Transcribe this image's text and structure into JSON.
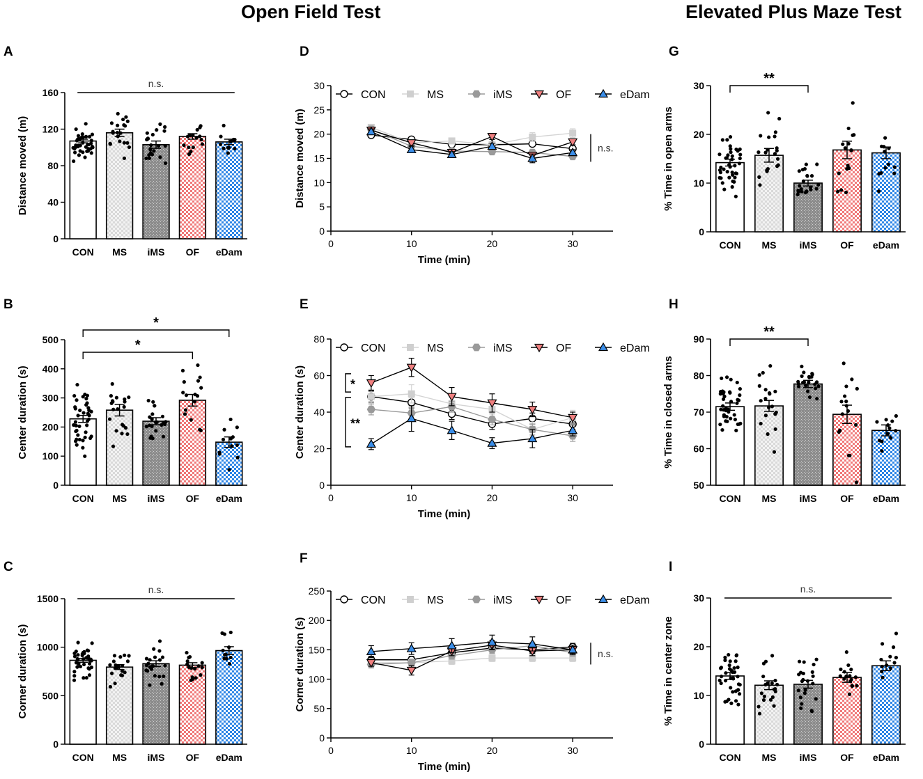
{
  "page": {
    "section_titles": [
      "Open Field Test",
      "Elevated Plus Maze Test"
    ]
  },
  "group_colors": {
    "CON": "#ffffff",
    "MS": "#d9d9d9",
    "iMS": "#8c8c8c",
    "OF": "#f07a7a",
    "eDam": "#2f86e6"
  },
  "chart_data": [
    {
      "id": "A",
      "type": "bar",
      "panel_letter": "A",
      "ylabel": "Distance moved (m)",
      "categories": [
        "CON",
        "MS",
        "iMS",
        "OF",
        "eDam"
      ],
      "values": [
        107,
        116,
        103,
        112,
        106
      ],
      "sem": [
        2,
        4,
        4,
        3,
        3
      ],
      "ylim": [
        0,
        160
      ],
      "yticks": [
        0,
        40,
        80,
        120,
        160
      ],
      "significance": [
        {
          "from": 0,
          "to": 4,
          "label": "n.s."
        }
      ]
    },
    {
      "id": "B",
      "type": "bar",
      "panel_letter": "B",
      "ylabel": "Center duration (s)",
      "categories": [
        "CON",
        "MS",
        "iMS",
        "OF",
        "eDam"
      ],
      "values": [
        228,
        258,
        220,
        292,
        148
      ],
      "sem": [
        12,
        20,
        12,
        20,
        18
      ],
      "ylim": [
        0,
        500
      ],
      "yticks": [
        0,
        100,
        200,
        300,
        400,
        500
      ],
      "significance": [
        {
          "from": 0,
          "to": 3,
          "label": "*"
        },
        {
          "from": 0,
          "to": 4,
          "label": "*"
        }
      ]
    },
    {
      "id": "C",
      "type": "bar",
      "panel_letter": "C",
      "ylabel": "Corner duration (s)",
      "categories": [
        "CON",
        "MS",
        "iMS",
        "OF",
        "eDam"
      ],
      "values": [
        865,
        795,
        830,
        815,
        965
      ],
      "sem": [
        20,
        25,
        30,
        25,
        40
      ],
      "ylim": [
        0,
        1500
      ],
      "yticks": [
        0,
        500,
        1000,
        1500
      ],
      "significance": [
        {
          "from": 0,
          "to": 4,
          "label": "n.s."
        }
      ]
    },
    {
      "id": "D",
      "type": "line",
      "panel_letter": "D",
      "xlabel": "Time (min)",
      "ylabel": "Distance moved (m)",
      "x": [
        5,
        10,
        15,
        20,
        25,
        30
      ],
      "xlim": [
        0,
        35
      ],
      "xticks": [
        0,
        10,
        20,
        30
      ],
      "ylim": [
        0,
        30
      ],
      "yticks": [
        0,
        5,
        10,
        15,
        20,
        25,
        30
      ],
      "legend": [
        "CON",
        "MS",
        "iMS",
        "OF",
        "eDam"
      ],
      "series": [
        {
          "name": "CON",
          "values": [
            19.8,
            18.9,
            17.9,
            17.8,
            18.0,
            17.0
          ],
          "sem": [
            0.3,
            0.3,
            0.3,
            0.3,
            0.3,
            0.3
          ]
        },
        {
          "name": "MS",
          "values": [
            21.4,
            18.2,
            18.6,
            17.8,
            19.4,
            20.2
          ],
          "sem": [
            0.6,
            0.6,
            0.6,
            0.6,
            0.9,
            0.9
          ]
        },
        {
          "name": "iMS",
          "values": [
            21.0,
            17.5,
            16.5,
            16.4,
            16.2,
            15.4
          ],
          "sem": [
            0.6,
            0.6,
            0.6,
            0.6,
            0.6,
            0.6
          ]
        },
        {
          "name": "OF",
          "values": [
            20.8,
            18.2,
            16.2,
            19.5,
            15.6,
            18.4
          ],
          "sem": [
            0.6,
            0.6,
            0.6,
            0.6,
            0.6,
            0.6
          ]
        },
        {
          "name": "eDam",
          "values": [
            20.5,
            16.8,
            15.8,
            17.5,
            15.0,
            16.2
          ],
          "sem": [
            0.6,
            0.6,
            0.6,
            0.6,
            0.9,
            0.6
          ]
        }
      ],
      "annotations": [
        {
          "label": "n.s.",
          "ystart": 20,
          "yend": 14.3
        }
      ]
    },
    {
      "id": "E",
      "type": "line",
      "panel_letter": "E",
      "xlabel": "Time (min)",
      "ylabel": "Center duration (s)",
      "x": [
        5,
        10,
        15,
        20,
        25,
        30
      ],
      "xlim": [
        0,
        35
      ],
      "xticks": [
        0,
        10,
        20,
        30
      ],
      "ylim": [
        0,
        80
      ],
      "yticks": [
        0,
        20,
        40,
        60,
        80
      ],
      "legend": [
        "CON",
        "MS",
        "iMS",
        "OF",
        "eDam"
      ],
      "series": [
        {
          "name": "CON",
          "values": [
            48.5,
            45.3,
            39.0,
            33.5,
            36.5,
            33.5
          ],
          "sem": [
            3,
            3,
            3,
            3,
            3,
            3
          ]
        },
        {
          "name": "MS",
          "values": [
            48.5,
            50.0,
            44.5,
            41.5,
            30.5,
            37.0
          ],
          "sem": [
            4,
            5,
            4,
            4,
            4,
            4
          ]
        },
        {
          "name": "iMS",
          "values": [
            41.5,
            39.5,
            43.0,
            36.0,
            30.5,
            27.0
          ],
          "sem": [
            3,
            3,
            3,
            3,
            3,
            3
          ]
        },
        {
          "name": "OF",
          "values": [
            56.0,
            64.5,
            48.5,
            45.0,
            41.5,
            37.0
          ],
          "sem": [
            4,
            5,
            5,
            5,
            4,
            3
          ]
        },
        {
          "name": "eDam",
          "values": [
            22.5,
            36.5,
            30.0,
            23.0,
            25.5,
            30.0
          ],
          "sem": [
            3,
            7,
            5,
            3,
            5,
            3
          ]
        }
      ],
      "annotations": [
        {
          "label": "*",
          "ystart": 61,
          "yend": 51
        },
        {
          "label": "**",
          "ystart": 48,
          "yend": 21
        }
      ]
    },
    {
      "id": "F",
      "type": "line",
      "panel_letter": "F",
      "xlabel": "Time (min)",
      "ylabel": "Corner duration (s)",
      "x": [
        5,
        10,
        15,
        20,
        25,
        30
      ],
      "xlim": [
        0,
        35
      ],
      "xticks": [
        0,
        10,
        20,
        30
      ],
      "ylim": [
        0,
        250
      ],
      "yticks": [
        0,
        50,
        100,
        150,
        200,
        250
      ],
      "legend": [
        "CON",
        "MS",
        "iMS",
        "OF",
        "eDam"
      ],
      "series": [
        {
          "name": "CON",
          "values": [
            133,
            133,
            145,
            153,
            150,
            155
          ],
          "sem": [
            6,
            6,
            6,
            6,
            6,
            6
          ]
        },
        {
          "name": "MS",
          "values": [
            128,
            128,
            131,
            136,
            136,
            136
          ],
          "sem": [
            6,
            6,
            6,
            6,
            6,
            6
          ]
        },
        {
          "name": "iMS",
          "values": [
            125,
            128,
            140,
            150,
            157,
            145
          ],
          "sem": [
            6,
            6,
            6,
            6,
            6,
            6
          ]
        },
        {
          "name": "OF",
          "values": [
            128,
            115,
            148,
            158,
            148,
            150
          ],
          "sem": [
            6,
            8,
            8,
            8,
            8,
            6
          ]
        },
        {
          "name": "eDam",
          "values": [
            147,
            152,
            157,
            163,
            160,
            150
          ],
          "sem": [
            10,
            10,
            12,
            12,
            12,
            8
          ]
        }
      ],
      "annotations": [
        {
          "label": "n.s.",
          "ystart": 162,
          "yend": 125
        }
      ]
    },
    {
      "id": "G",
      "type": "bar",
      "panel_letter": "G",
      "ylabel": "% Time in open arms",
      "categories": [
        "CON",
        "MS",
        "iMS",
        "OF",
        "eDam"
      ],
      "values": [
        14.2,
        15.7,
        10.0,
        16.8,
        16.2
      ],
      "sem": [
        0.7,
        1.4,
        0.6,
        1.8,
        1.2
      ],
      "ylim": [
        0,
        30
      ],
      "yticks": [
        0,
        10,
        20,
        30
      ],
      "significance": [
        {
          "from": 0,
          "to": 2,
          "label": "**"
        }
      ]
    },
    {
      "id": "H",
      "type": "bar",
      "panel_letter": "H",
      "ylabel": "% Time in closed arms",
      "categories": [
        "CON",
        "MS",
        "iMS",
        "OF",
        "eDam"
      ],
      "values": [
        71.5,
        71.7,
        77.7,
        69.4,
        65.0
      ],
      "sem": [
        1.0,
        1.5,
        1.0,
        2.5,
        1.5
      ],
      "ylim": [
        50,
        90
      ],
      "yticks": [
        50,
        60,
        70,
        80,
        90
      ],
      "significance": [
        {
          "from": 0,
          "to": 2,
          "label": "**"
        }
      ]
    },
    {
      "id": "I",
      "type": "bar",
      "panel_letter": "I",
      "ylabel": "% Time in center zone",
      "categories": [
        "CON",
        "MS",
        "iMS",
        "OF",
        "eDam"
      ],
      "values": [
        14.0,
        12.1,
        12.3,
        13.7,
        16.1
      ],
      "sem": [
        0.7,
        0.9,
        0.8,
        1.0,
        1.0
      ],
      "ylim": [
        0,
        30
      ],
      "yticks": [
        0,
        10,
        20,
        30
      ],
      "significance": [
        {
          "from": 0,
          "to": 4,
          "label": "n.s."
        }
      ]
    }
  ]
}
